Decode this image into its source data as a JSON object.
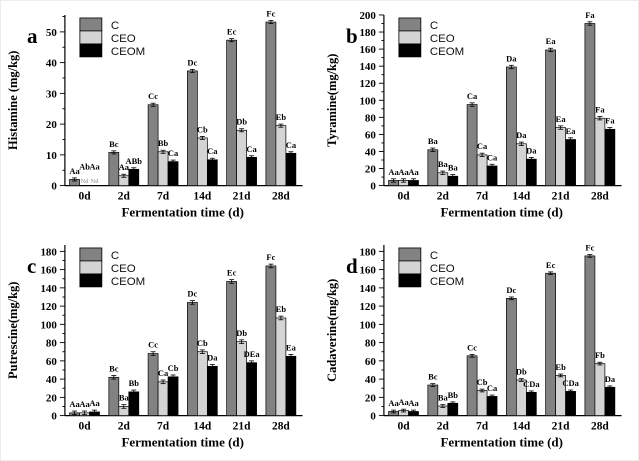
{
  "figure": {
    "x_axis_label": "Fermentation time (d)",
    "categories": [
      "0d",
      "2d",
      "7d",
      "14d",
      "21d",
      "28d"
    ],
    "legend": [
      "C",
      "CEO",
      "CEOM"
    ],
    "colors": {
      "C": "#828282",
      "CEO": "#d4d4d4",
      "CEOM": "#000000"
    },
    "nd_text": "Nd"
  },
  "chart_data": [
    {
      "type": "bar",
      "panel": "a",
      "ylabel": "Histamine (mg/kg)",
      "xlabel": "Fermentation time (d)",
      "categories": [
        "0d",
        "2d",
        "7d",
        "14d",
        "21d",
        "28d"
      ],
      "ylim": [
        0,
        55.5
      ],
      "ytick_max": 50,
      "ytick_step": 10,
      "minor_step": 5,
      "error_approx": 0.5,
      "series": [
        {
          "name": "C",
          "values": [
            2,
            10.8,
            26.3,
            37.3,
            47.3,
            53.2
          ],
          "labels": [
            "Aa",
            "Bc",
            "Cc",
            "Dc",
            "Ec",
            "Fc"
          ]
        },
        {
          "name": "CEO",
          "values": [
            null,
            3.2,
            11,
            15.5,
            18,
            19.5
          ],
          "labels": [
            "Ab",
            "Aa",
            "Bb",
            "Cb",
            "Db",
            "Eb"
          ]
        },
        {
          "name": "CEOM",
          "values": [
            null,
            5.3,
            7.8,
            8.4,
            9.2,
            10.5
          ],
          "labels": [
            "Aa",
            "ABb",
            "Ca",
            "Ca",
            "Ca",
            "Ca"
          ]
        }
      ]
    },
    {
      "type": "bar",
      "panel": "b",
      "ylabel": "Tyramine(mg/kg)",
      "xlabel": "Fermentation time (d)",
      "categories": [
        "0d",
        "2d",
        "7d",
        "14d",
        "21d",
        "28d"
      ],
      "ylim": [
        0,
        200
      ],
      "ytick_max": 200,
      "ytick_step": 20,
      "minor_step": 10,
      "error_approx": 2,
      "series": [
        {
          "name": "C",
          "values": [
            6,
            42,
            95,
            139,
            159,
            190
          ],
          "labels": [
            "Aa",
            "Ba",
            "Ca",
            "Da",
            "Ea",
            "Fa"
          ]
        },
        {
          "name": "CEO",
          "values": [
            6,
            15,
            36,
            49,
            68,
            79
          ],
          "labels": [
            "Aa",
            "Ba",
            "Ca",
            "Da",
            "Ea",
            "Fa"
          ]
        },
        {
          "name": "CEOM",
          "values": [
            6,
            11,
            23,
            31,
            54,
            66
          ],
          "labels": [
            "Aa",
            "Ba",
            "Ca",
            "Da",
            "Ea",
            "Fa"
          ]
        }
      ]
    },
    {
      "type": "bar",
      "panel": "c",
      "ylabel": "Putrescine(mg/kg)",
      "xlabel": "Fermentation time (d)",
      "categories": [
        "0d",
        "2d",
        "7d",
        "14d",
        "21d",
        "28d"
      ],
      "ylim": [
        0,
        187
      ],
      "ytick_max": 180,
      "ytick_step": 20,
      "minor_step": 10,
      "error_approx": 2,
      "series": [
        {
          "name": "C",
          "values": [
            3,
            42,
            68,
            124,
            147,
            164
          ],
          "labels": [
            "Aa",
            "Bc",
            "Cc",
            "Dc",
            "Ec",
            "Fc"
          ]
        },
        {
          "name": "CEO",
          "values": [
            3,
            10,
            37,
            70,
            81,
            107
          ],
          "labels": [
            "Aa",
            "Ba",
            "Ca",
            "Cb",
            "Db",
            "Eb"
          ]
        },
        {
          "name": "CEOM",
          "values": [
            4,
            26,
            42.5,
            54,
            58,
            65
          ],
          "labels": [
            "Aa",
            "Bb",
            "Cb",
            "Da",
            "DEa",
            "Ea"
          ]
        }
      ]
    },
    {
      "type": "bar",
      "panel": "d",
      "ylabel": "Cadaverine(mg/kg)",
      "xlabel": "Fermentation time (d)",
      "categories": [
        "0d",
        "2d",
        "7d",
        "14d",
        "21d",
        "28d"
      ],
      "ylim": [
        0,
        187
      ],
      "ytick_max": 180,
      "ytick_step": 20,
      "minor_step": 10,
      "error_approx": 1.5,
      "series": [
        {
          "name": "C",
          "values": [
            4.5,
            33.5,
            65.5,
            128.5,
            156,
            175
          ],
          "labels": [
            "Aa",
            "Bc",
            "Cc",
            "Dc",
            "Ec",
            "Fc"
          ]
        },
        {
          "name": "CEO",
          "values": [
            5.5,
            10.5,
            27.5,
            39,
            44,
            57
          ],
          "labels": [
            "Aa",
            "Ba",
            "Cb",
            "Db",
            "Eb",
            "Fb"
          ]
        },
        {
          "name": "CEOM",
          "values": [
            4.5,
            13.5,
            21,
            25.5,
            26.5,
            31
          ],
          "labels": [
            "Aa",
            "Bb",
            "Ca",
            "CDa",
            "CDa",
            "Da"
          ]
        }
      ]
    }
  ]
}
